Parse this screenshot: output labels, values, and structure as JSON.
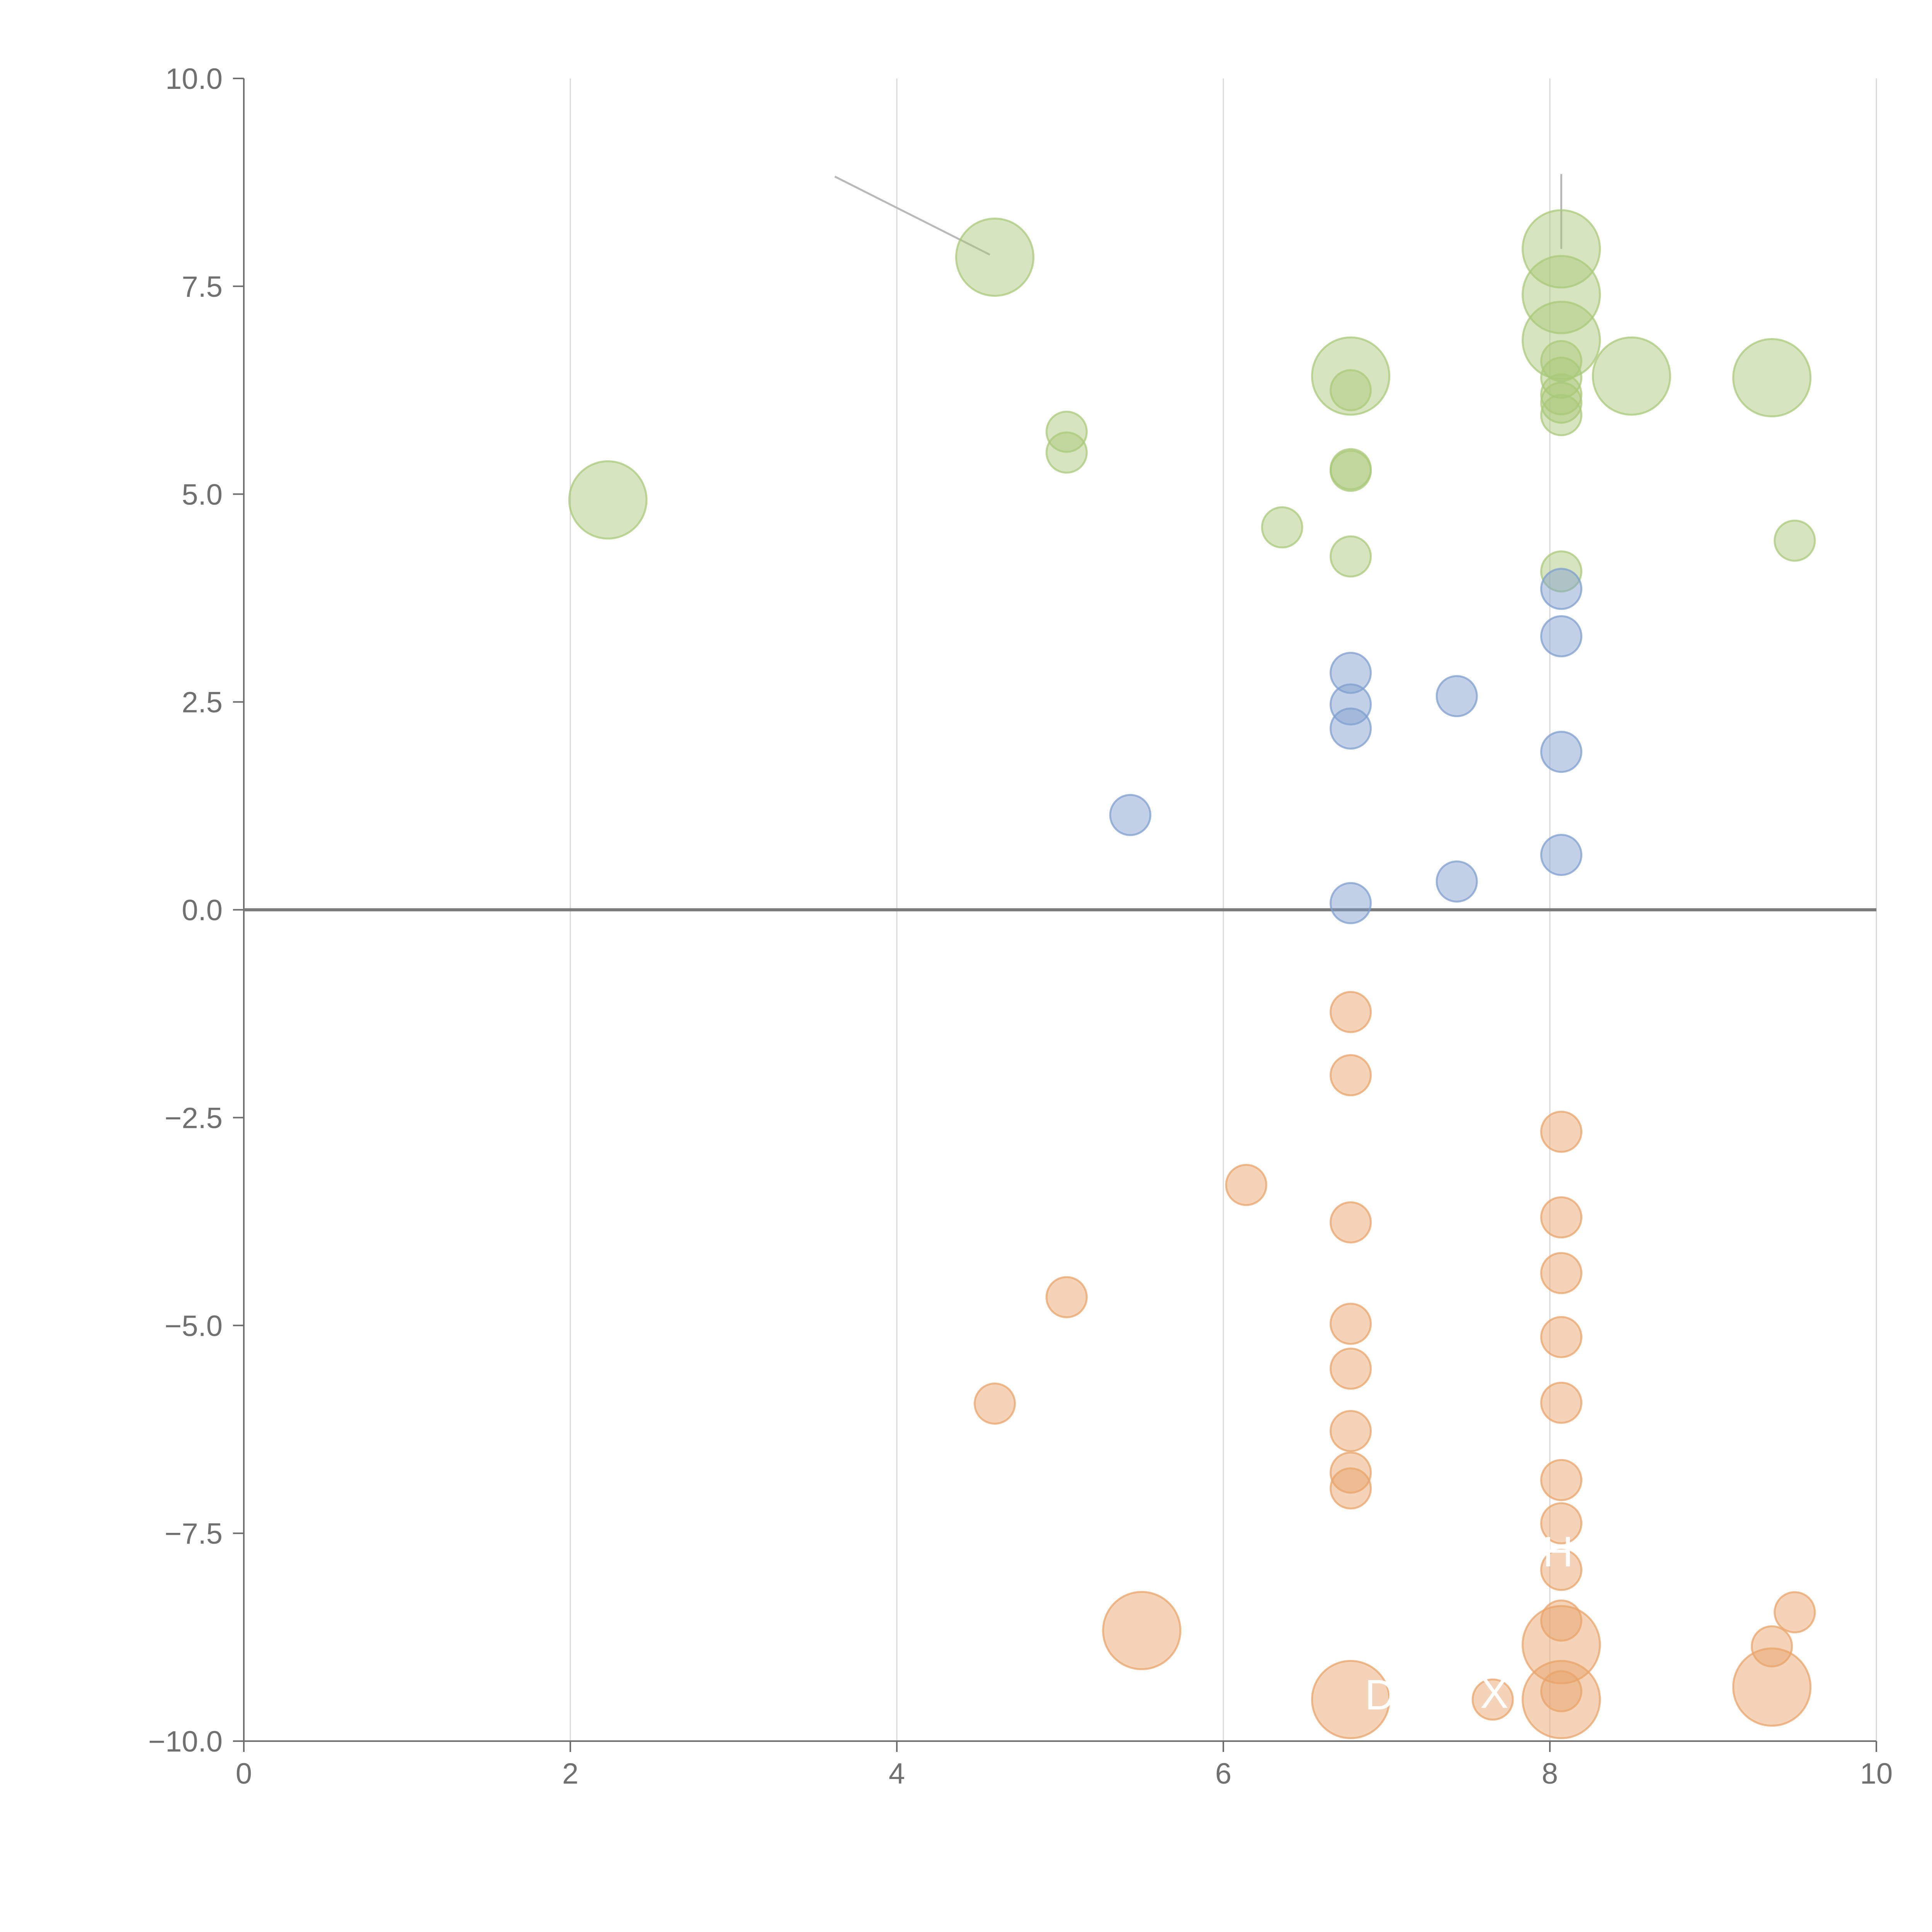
{
  "chart_data": {
    "type": "scatter",
    "title": "",
    "xlabel": "",
    "ylabel": "",
    "xlim": [
      0,
      10
    ],
    "ylim": [
      -10,
      10
    ],
    "x_ticks": [
      "0",
      "2",
      "4",
      "6",
      "8",
      "10"
    ],
    "y_ticks": [
      "10.0",
      "7.5",
      "5.0",
      "2.5",
      "0.0",
      "−2.5",
      "−5.0",
      "−7.5",
      "−10.0"
    ],
    "x_tick_values": [
      0,
      2,
      4,
      6,
      8,
      10
    ],
    "y_tick_values": [
      10,
      7.5,
      5,
      2.5,
      0,
      -2.5,
      -5,
      -7.5,
      -10
    ],
    "vertical_grid": true,
    "zero_line": true,
    "colors": {
      "green": "#a9c97a",
      "blue": "#7f9fcf",
      "orange": "#e9a46a"
    },
    "series": [
      {
        "name": "green",
        "color_key": "green",
        "points": [
          {
            "x": 4.6,
            "y": 7.85,
            "size": "large"
          },
          {
            "x": 2.23,
            "y": 4.93,
            "size": "large"
          },
          {
            "x": 5.04,
            "y": 5.75,
            "size": "small"
          },
          {
            "x": 5.04,
            "y": 5.5,
            "size": "small"
          },
          {
            "x": 6.36,
            "y": 4.6,
            "size": "small"
          },
          {
            "x": 6.78,
            "y": 6.42,
            "size": "large"
          },
          {
            "x": 6.78,
            "y": 6.25,
            "size": "small"
          },
          {
            "x": 6.78,
            "y": 5.3,
            "size": "small"
          },
          {
            "x": 6.78,
            "y": 5.28,
            "size": "small"
          },
          {
            "x": 6.78,
            "y": 4.25,
            "size": "small"
          },
          {
            "x": 8.07,
            "y": 7.95,
            "size": "large"
          },
          {
            "x": 8.07,
            "y": 7.4,
            "size": "large"
          },
          {
            "x": 8.07,
            "y": 6.85,
            "size": "large"
          },
          {
            "x": 8.07,
            "y": 6.6,
            "size": "small"
          },
          {
            "x": 8.07,
            "y": 6.4,
            "size": "small"
          },
          {
            "x": 8.07,
            "y": 6.2,
            "size": "small"
          },
          {
            "x": 8.07,
            "y": 6.1,
            "size": "small"
          },
          {
            "x": 8.07,
            "y": 5.95,
            "size": "small"
          },
          {
            "x": 8.07,
            "y": 4.07,
            "size": "small"
          },
          {
            "x": 8.5,
            "y": 6.42,
            "size": "large"
          },
          {
            "x": 9.36,
            "y": 6.4,
            "size": "large"
          },
          {
            "x": 9.5,
            "y": 4.44,
            "size": "small"
          }
        ]
      },
      {
        "name": "blue",
        "color_key": "blue",
        "points": [
          {
            "x": 5.43,
            "y": 1.14,
            "size": "small"
          },
          {
            "x": 6.78,
            "y": 2.85,
            "size": "small"
          },
          {
            "x": 6.78,
            "y": 2.47,
            "size": "small"
          },
          {
            "x": 6.78,
            "y": 2.18,
            "size": "small"
          },
          {
            "x": 6.78,
            "y": 0.08,
            "size": "small"
          },
          {
            "x": 7.43,
            "y": 2.57,
            "size": "small"
          },
          {
            "x": 7.43,
            "y": 0.34,
            "size": "small"
          },
          {
            "x": 8.07,
            "y": 3.86,
            "size": "small"
          },
          {
            "x": 8.07,
            "y": 3.29,
            "size": "small"
          },
          {
            "x": 8.07,
            "y": 1.9,
            "size": "small"
          },
          {
            "x": 8.07,
            "y": 0.66,
            "size": "small"
          }
        ]
      },
      {
        "name": "orange",
        "color_key": "orange",
        "points": [
          {
            "x": 4.6,
            "y": -5.94,
            "size": "small"
          },
          {
            "x": 5.04,
            "y": -4.66,
            "size": "small"
          },
          {
            "x": 5.5,
            "y": -8.67,
            "size": "large"
          },
          {
            "x": 6.14,
            "y": -3.31,
            "size": "small"
          },
          {
            "x": 6.78,
            "y": -1.23,
            "size": "small"
          },
          {
            "x": 6.78,
            "y": -1.99,
            "size": "small"
          },
          {
            "x": 6.78,
            "y": -3.76,
            "size": "small"
          },
          {
            "x": 6.78,
            "y": -4.98,
            "size": "small"
          },
          {
            "x": 6.78,
            "y": -5.52,
            "size": "small"
          },
          {
            "x": 6.78,
            "y": -6.27,
            "size": "small"
          },
          {
            "x": 6.78,
            "y": -6.77,
            "size": "small"
          },
          {
            "x": 6.78,
            "y": -6.96,
            "size": "small"
          },
          {
            "x": 6.78,
            "y": -9.5,
            "size": "large"
          },
          {
            "x": 7.65,
            "y": -9.5,
            "size": "small"
          },
          {
            "x": 8.07,
            "y": -2.67,
            "size": "small"
          },
          {
            "x": 8.07,
            "y": -3.7,
            "size": "small"
          },
          {
            "x": 8.07,
            "y": -4.37,
            "size": "small"
          },
          {
            "x": 8.07,
            "y": -5.14,
            "size": "small"
          },
          {
            "x": 8.07,
            "y": -5.93,
            "size": "small"
          },
          {
            "x": 8.07,
            "y": -6.86,
            "size": "small"
          },
          {
            "x": 8.07,
            "y": -7.38,
            "size": "small"
          },
          {
            "x": 8.07,
            "y": -7.94,
            "size": "small"
          },
          {
            "x": 8.07,
            "y": -8.55,
            "size": "small"
          },
          {
            "x": 8.07,
            "y": -8.84,
            "size": "large"
          },
          {
            "x": 8.07,
            "y": -9.5,
            "size": "large"
          },
          {
            "x": 8.07,
            "y": -9.4,
            "size": "small"
          },
          {
            "x": 9.36,
            "y": -8.86,
            "size": "small"
          },
          {
            "x": 9.36,
            "y": -9.35,
            "size": "large"
          },
          {
            "x": 9.5,
            "y": -8.45,
            "size": "small"
          }
        ]
      }
    ],
    "leader_lines": [
      {
        "from": [
          3.62,
          8.82
        ],
        "to": [
          4.57,
          7.88
        ],
        "color": "gray"
      },
      {
        "from": [
          8.07,
          8.85
        ],
        "to": [
          8.07,
          7.95
        ],
        "color": "gray"
      },
      {
        "from": [
          8.1,
          7.46
        ],
        "to": [
          8.24,
          7.6
        ],
        "color": "white"
      },
      {
        "from": [
          8.48,
          6.45
        ],
        "to": [
          8.52,
          6.1
        ],
        "color": "white"
      },
      {
        "from": [
          9.36,
          6.45
        ],
        "to": [
          9.37,
          6.05
        ],
        "color": "white"
      },
      {
        "from": [
          5.54,
          -8.67
        ],
        "to": [
          5.83,
          -8.57
        ],
        "color": "white"
      },
      {
        "from": [
          8.07,
          -8.55
        ],
        "to": [
          8.09,
          -7.95
        ],
        "color": "white"
      },
      {
        "from": [
          9.36,
          -9.35
        ],
        "to": [
          9.37,
          -8.9
        ],
        "color": "white"
      },
      {
        "from": [
          8.1,
          -9.5
        ],
        "to": [
          8.35,
          -9.55
        ],
        "color": "white"
      },
      {
        "from": [
          6.8,
          -9.5
        ],
        "to": [
          6.95,
          -9.55
        ],
        "color": "white"
      }
    ],
    "annotations": [
      {
        "text": "D",
        "x": 6.96,
        "y": -9.62
      },
      {
        "text": "X",
        "x": 7.66,
        "y": -9.6
      },
      {
        "text": "H",
        "x": 8.05,
        "y": -7.9
      }
    ]
  }
}
